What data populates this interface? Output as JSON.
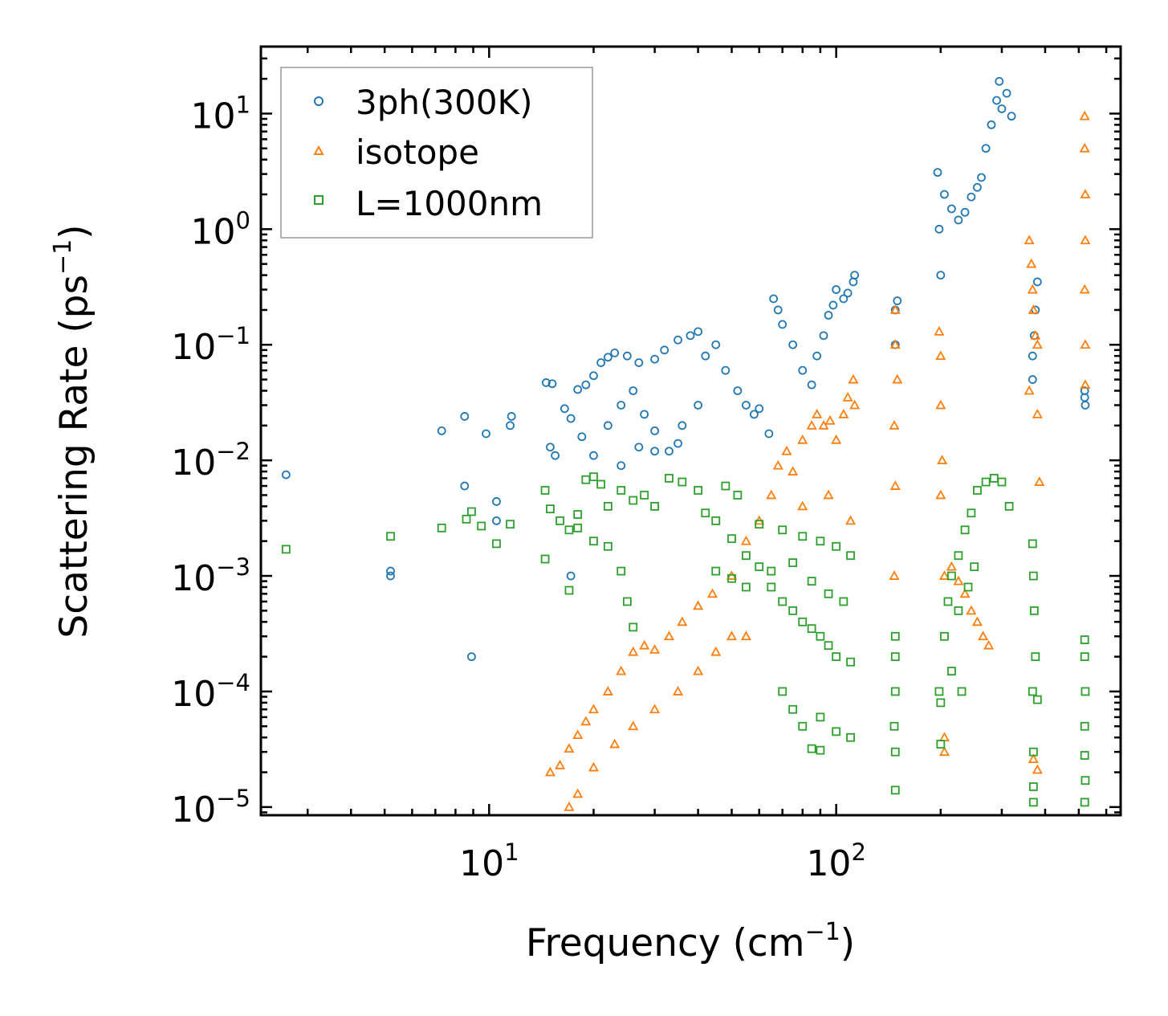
{
  "chart_data": {
    "type": "scatter",
    "title": "",
    "xlabel": "Frequency (cm",
    "xlabel_sup": "−1",
    "xlabel_tail": ")",
    "ylabel": "Scattering Rate (ps",
    "ylabel_sup": "−1",
    "ylabel_tail": ")",
    "xscale": "log",
    "yscale": "log",
    "xlim": [
      2.2,
      660
    ],
    "ylim": [
      8.5e-06,
      38
    ],
    "x_ticks": [
      {
        "base": "10",
        "exp": "1",
        "value": 10
      },
      {
        "base": "10",
        "exp": "2",
        "value": 100
      }
    ],
    "y_ticks": [
      {
        "base": "10",
        "exp": "1",
        "value": 10
      },
      {
        "base": "10",
        "exp": "0",
        "value": 1
      },
      {
        "base": "10",
        "exp": "−1",
        "value": 0.1
      },
      {
        "base": "10",
        "exp": "−2",
        "value": 0.01
      },
      {
        "base": "10",
        "exp": "−3",
        "value": 0.001
      },
      {
        "base": "10",
        "exp": "−4",
        "value": 0.0001
      },
      {
        "base": "10",
        "exp": "−5",
        "value": 1e-05
      }
    ],
    "legend_position": "top-left",
    "series": [
      {
        "name": "3ph(300K)",
        "marker": "circle",
        "color": "#1f77b4",
        "points": [
          [
            2.6,
            0.0075
          ],
          [
            5.2,
            0.0011
          ],
          [
            5.2,
            0.001
          ],
          [
            7.3,
            0.018
          ],
          [
            8.5,
            0.024
          ],
          [
            8.5,
            0.006
          ],
          [
            8.9,
            0.0002
          ],
          [
            9.8,
            0.017
          ],
          [
            10.5,
            0.0044
          ],
          [
            10.5,
            0.003
          ],
          [
            11.5,
            0.02
          ],
          [
            11.6,
            0.024
          ],
          [
            14.6,
            0.047
          ],
          [
            15.2,
            0.046
          ],
          [
            15,
            0.013
          ],
          [
            15.5,
            0.011
          ],
          [
            16.5,
            0.028
          ],
          [
            17.2,
            0.023
          ],
          [
            17.2,
            0.001
          ],
          [
            18,
            0.041
          ],
          [
            19,
            0.045
          ],
          [
            20,
            0.054
          ],
          [
            21,
            0.07
          ],
          [
            22,
            0.078
          ],
          [
            23,
            0.085
          ],
          [
            25,
            0.08
          ],
          [
            27,
            0.07
          ],
          [
            30,
            0.075
          ],
          [
            32,
            0.09
          ],
          [
            35,
            0.11
          ],
          [
            38,
            0.12
          ],
          [
            40,
            0.13
          ],
          [
            18.5,
            0.016
          ],
          [
            20,
            0.011
          ],
          [
            22,
            0.02
          ],
          [
            24,
            0.03
          ],
          [
            26,
            0.04
          ],
          [
            28,
            0.025
          ],
          [
            30,
            0.018
          ],
          [
            33,
            0.012
          ],
          [
            36,
            0.02
          ],
          [
            40,
            0.03
          ],
          [
            24,
            0.009
          ],
          [
            27,
            0.013
          ],
          [
            30,
            0.012
          ],
          [
            35,
            0.014
          ],
          [
            42,
            0.08
          ],
          [
            45,
            0.1
          ],
          [
            48,
            0.06
          ],
          [
            52,
            0.04
          ],
          [
            55,
            0.03
          ],
          [
            58,
            0.025
          ],
          [
            60,
            0.028
          ],
          [
            64,
            0.017
          ],
          [
            66,
            0.25
          ],
          [
            68,
            0.2
          ],
          [
            70,
            0.15
          ],
          [
            75,
            0.1
          ],
          [
            80,
            0.06
          ],
          [
            85,
            0.045
          ],
          [
            88,
            0.08
          ],
          [
            92,
            0.12
          ],
          [
            95,
            0.18
          ],
          [
            98,
            0.22
          ],
          [
            100,
            0.3
          ],
          [
            105,
            0.25
          ],
          [
            108,
            0.28
          ],
          [
            112,
            0.35
          ],
          [
            113,
            0.4
          ],
          [
            148,
            0.1
          ],
          [
            148,
            0.2
          ],
          [
            150,
            0.24
          ],
          [
            196,
            3.1
          ],
          [
            198,
            1.0
          ],
          [
            200,
            0.4
          ],
          [
            205,
            2.0
          ],
          [
            215,
            1.5
          ],
          [
            225,
            1.2
          ],
          [
            235,
            1.4
          ],
          [
            245,
            1.9
          ],
          [
            255,
            2.3
          ],
          [
            262,
            2.8
          ],
          [
            270,
            5.0
          ],
          [
            280,
            8.0
          ],
          [
            290,
            13
          ],
          [
            295,
            19
          ],
          [
            300,
            11
          ],
          [
            310,
            15
          ],
          [
            320,
            9.5
          ],
          [
            368,
            0.08
          ],
          [
            368,
            0.05
          ],
          [
            372,
            0.12
          ],
          [
            375,
            0.2
          ],
          [
            380,
            0.35
          ],
          [
            520,
            0.04
          ],
          [
            520,
            0.035
          ],
          [
            522,
            0.03
          ]
        ]
      },
      {
        "name": "isotope",
        "marker": "triangle",
        "color": "#ff7f0e",
        "points": [
          [
            15,
            2e-05
          ],
          [
            16,
            2.3e-05
          ],
          [
            17,
            3.2e-05
          ],
          [
            18,
            4.2e-05
          ],
          [
            19,
            5.5e-05
          ],
          [
            20,
            7e-05
          ],
          [
            22,
            0.0001
          ],
          [
            24,
            0.00015
          ],
          [
            26,
            0.00022
          ],
          [
            28,
            0.00025
          ],
          [
            30,
            0.00023
          ],
          [
            33,
            0.0003
          ],
          [
            36,
            0.0004
          ],
          [
            40,
            0.00055
          ],
          [
            44,
            0.0007
          ],
          [
            17,
            1e-05
          ],
          [
            18,
            1.3e-05
          ],
          [
            20,
            2.2e-05
          ],
          [
            23,
            3.5e-05
          ],
          [
            26,
            5e-05
          ],
          [
            30,
            7e-05
          ],
          [
            35,
            0.0001
          ],
          [
            40,
            0.00015
          ],
          [
            45,
            0.00022
          ],
          [
            50,
            0.0003
          ],
          [
            55,
            0.0003
          ],
          [
            50,
            0.001
          ],
          [
            55,
            0.002
          ],
          [
            60,
            0.003
          ],
          [
            65,
            0.005
          ],
          [
            68,
            0.009
          ],
          [
            72,
            0.012
          ],
          [
            75,
            0.008
          ],
          [
            80,
            0.015
          ],
          [
            85,
            0.02
          ],
          [
            88,
            0.025
          ],
          [
            92,
            0.02
          ],
          [
            96,
            0.022
          ],
          [
            100,
            0.015
          ],
          [
            105,
            0.025
          ],
          [
            108,
            0.035
          ],
          [
            112,
            0.05
          ],
          [
            113,
            0.03
          ],
          [
            80,
            0.004
          ],
          [
            95,
            0.005
          ],
          [
            110,
            0.003
          ],
          [
            148,
            0.2
          ],
          [
            148,
            0.1
          ],
          [
            150,
            0.05
          ],
          [
            147,
            0.02
          ],
          [
            148,
            0.006
          ],
          [
            147,
            0.001
          ],
          [
            198,
            0.13
          ],
          [
            200,
            0.08
          ],
          [
            200,
            0.03
          ],
          [
            202,
            0.01
          ],
          [
            200,
            0.005
          ],
          [
            205,
            0.001
          ],
          [
            205,
            4e-05
          ],
          [
            205,
            3e-05
          ],
          [
            215,
            0.0012
          ],
          [
            225,
            0.0009
          ],
          [
            235,
            0.0007
          ],
          [
            245,
            0.0005
          ],
          [
            255,
            0.0004
          ],
          [
            265,
            0.0003
          ],
          [
            275,
            0.00025
          ],
          [
            360,
            0.8
          ],
          [
            365,
            0.5
          ],
          [
            368,
            0.3
          ],
          [
            370,
            0.2
          ],
          [
            375,
            0.12
          ],
          [
            380,
            0.1
          ],
          [
            360,
            0.04
          ],
          [
            380,
            0.025
          ],
          [
            385,
            0.0065
          ],
          [
            370,
            2.6e-05
          ],
          [
            380,
            2.1e-05
          ],
          [
            520,
            9.5
          ],
          [
            520,
            5.0
          ],
          [
            522,
            2.0
          ],
          [
            522,
            0.8
          ],
          [
            520,
            0.3
          ],
          [
            522,
            0.1
          ],
          [
            522,
            0.045
          ]
        ]
      },
      {
        "name": "L=1000nm",
        "marker": "square",
        "color": "#2ca02c",
        "points": [
          [
            2.6,
            0.0017
          ],
          [
            5.2,
            0.0022
          ],
          [
            7.3,
            0.0026
          ],
          [
            8.6,
            0.0031
          ],
          [
            8.9,
            0.0036
          ],
          [
            9.5,
            0.0027
          ],
          [
            10.5,
            0.0019
          ],
          [
            11.5,
            0.0028
          ],
          [
            14.5,
            0.0055
          ],
          [
            15,
            0.0038
          ],
          [
            16,
            0.003
          ],
          [
            17,
            0.0025
          ],
          [
            17,
            0.00075
          ],
          [
            18,
            0.0034
          ],
          [
            19,
            0.0068
          ],
          [
            20,
            0.0072
          ],
          [
            21,
            0.0062
          ],
          [
            22,
            0.004
          ],
          [
            24,
            0.0055
          ],
          [
            26,
            0.0045
          ],
          [
            28,
            0.005
          ],
          [
            30,
            0.004
          ],
          [
            33,
            0.007
          ],
          [
            36,
            0.0065
          ],
          [
            40,
            0.0055
          ],
          [
            42,
            0.0035
          ],
          [
            45,
            0.003
          ],
          [
            48,
            0.006
          ],
          [
            52,
            0.005
          ],
          [
            14.5,
            0.0014
          ],
          [
            18,
            0.0026
          ],
          [
            20,
            0.002
          ],
          [
            22,
            0.0018
          ],
          [
            24,
            0.0011
          ],
          [
            25,
            0.0006
          ],
          [
            26,
            0.00036
          ],
          [
            50,
            0.0021
          ],
          [
            55,
            0.0015
          ],
          [
            60,
            0.0012
          ],
          [
            65,
            0.0008
          ],
          [
            70,
            0.0006
          ],
          [
            75,
            0.0005
          ],
          [
            80,
            0.0004
          ],
          [
            85,
            0.00035
          ],
          [
            90,
            0.0003
          ],
          [
            95,
            0.00025
          ],
          [
            100,
            0.0002
          ],
          [
            110,
            0.00018
          ],
          [
            60,
            0.0028
          ],
          [
            70,
            0.0025
          ],
          [
            80,
            0.0022
          ],
          [
            90,
            0.002
          ],
          [
            100,
            0.0018
          ],
          [
            110,
            0.0015
          ],
          [
            45,
            0.0011
          ],
          [
            50,
            0.00095
          ],
          [
            55,
            0.0008
          ],
          [
            65,
            0.0011
          ],
          [
            75,
            0.0013
          ],
          [
            85,
            0.0009
          ],
          [
            95,
            0.0007
          ],
          [
            105,
            0.0006
          ],
          [
            70,
            0.0001
          ],
          [
            75,
            7e-05
          ],
          [
            80,
            5e-05
          ],
          [
            90,
            6e-05
          ],
          [
            100,
            4.5e-05
          ],
          [
            110,
            4e-05
          ],
          [
            85,
            3.2e-05
          ],
          [
            90,
            3.1e-05
          ],
          [
            148,
            0.0003
          ],
          [
            148,
            0.0002
          ],
          [
            148,
            0.0001
          ],
          [
            147,
            5e-05
          ],
          [
            148,
            3e-05
          ],
          [
            148,
            1.4e-05
          ],
          [
            198,
            0.0001
          ],
          [
            200,
            8e-05
          ],
          [
            200,
            3.5e-05
          ],
          [
            205,
            0.0003
          ],
          [
            210,
            0.0006
          ],
          [
            215,
            0.001
          ],
          [
            225,
            0.0015
          ],
          [
            235,
            0.0025
          ],
          [
            245,
            0.0035
          ],
          [
            255,
            0.0055
          ],
          [
            270,
            0.0065
          ],
          [
            285,
            0.007
          ],
          [
            300,
            0.0065
          ],
          [
            315,
            0.004
          ],
          [
            225,
            0.0005
          ],
          [
            240,
            0.0008
          ],
          [
            250,
            0.0012
          ],
          [
            215,
            0.00015
          ],
          [
            230,
            0.0001
          ],
          [
            368,
            0.0019
          ],
          [
            370,
            0.001
          ],
          [
            372,
            0.0005
          ],
          [
            375,
            0.0002
          ],
          [
            368,
            0.0001
          ],
          [
            370,
            3e-05
          ],
          [
            370,
            1.5e-05
          ],
          [
            370,
            1.1e-05
          ],
          [
            380,
            8.5e-05
          ],
          [
            520,
            0.00028
          ],
          [
            520,
            0.0002
          ],
          [
            522,
            0.0001
          ],
          [
            520,
            5e-05
          ],
          [
            520,
            2.8e-05
          ],
          [
            522,
            1.7e-05
          ],
          [
            520,
            1.1e-05
          ]
        ]
      }
    ]
  }
}
